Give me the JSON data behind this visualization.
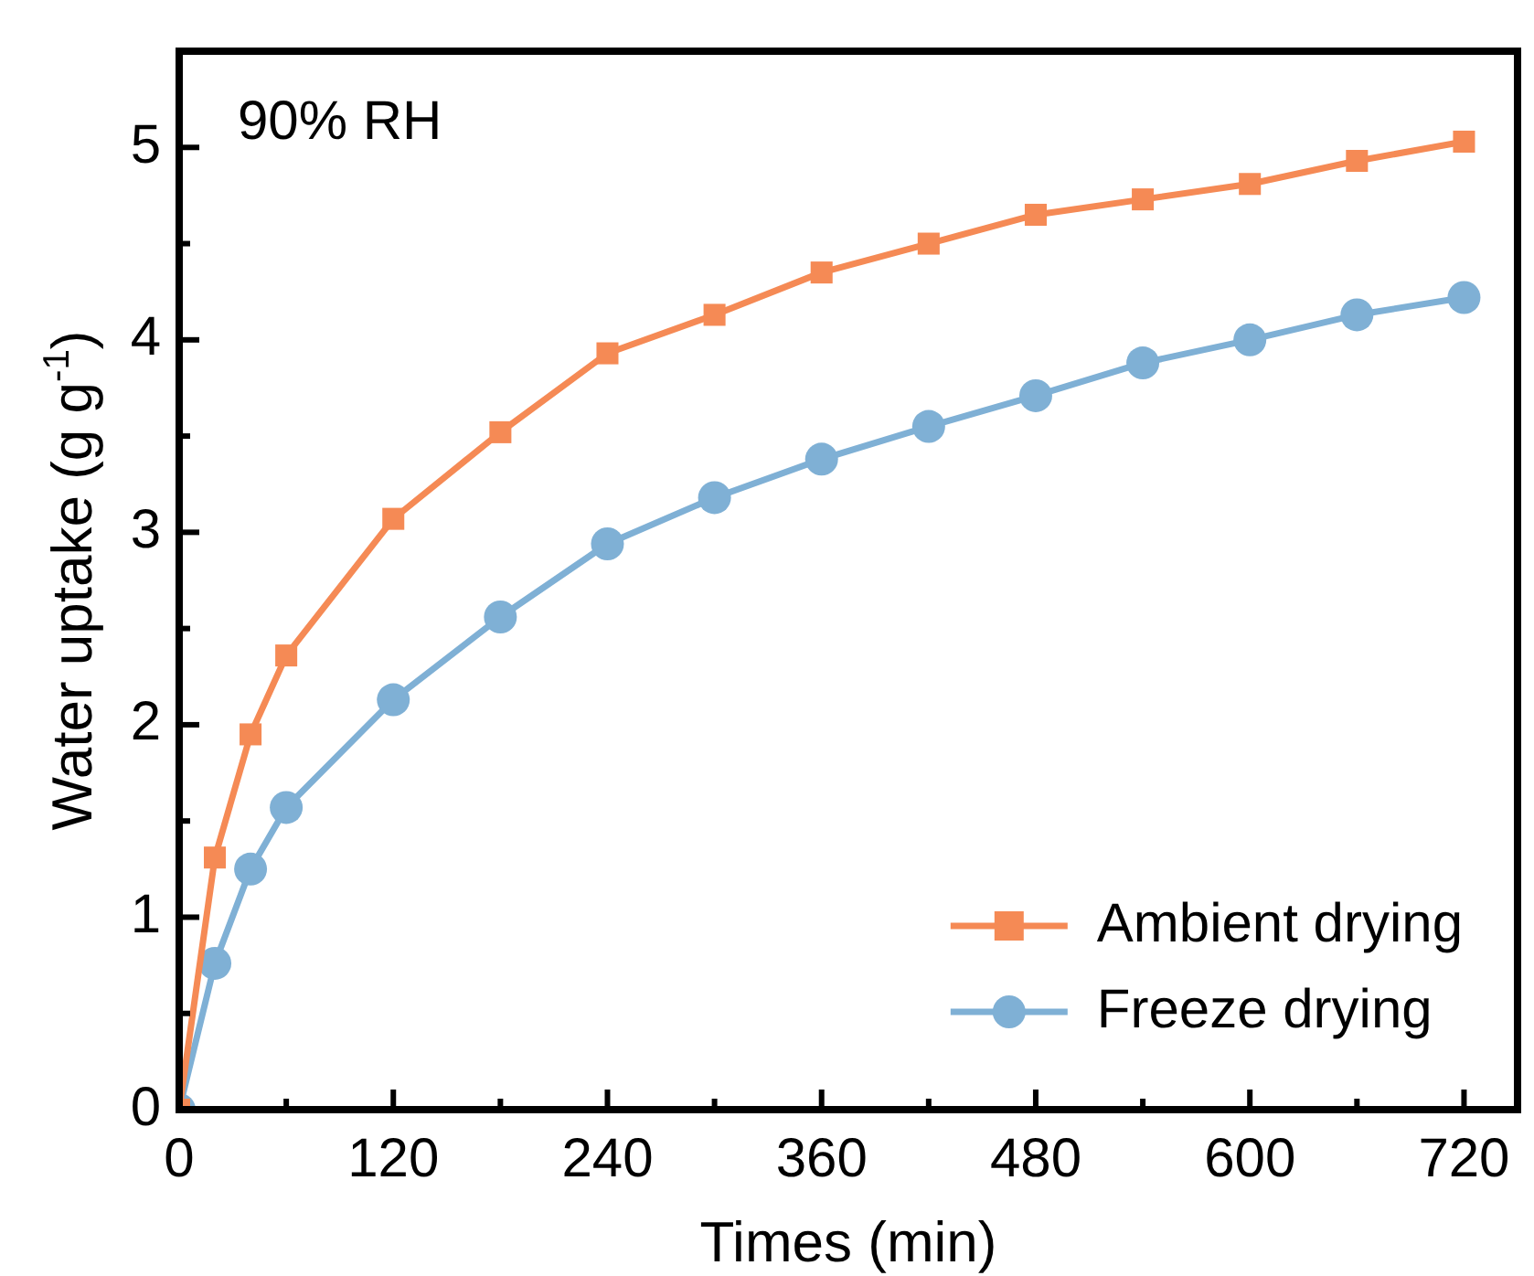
{
  "chart_data": {
    "type": "line",
    "xlabel": "Times (min)",
    "ylabel": "Water uptake (g g$^{-1}$)",
    "annotations": [
      "90% RH"
    ],
    "x": [
      0,
      20,
      40,
      60,
      120,
      180,
      240,
      300,
      360,
      420,
      480,
      540,
      600,
      660,
      720
    ],
    "xlim": [
      0,
      750
    ],
    "xticks": [
      0,
      {
        "value": 60,
        "label": null
      },
      120,
      {
        "value": 180,
        "label": null
      },
      240,
      {
        "value": 300,
        "label": null
      },
      360,
      {
        "value": 420,
        "label": null
      },
      480,
      {
        "value": 540,
        "label": null
      },
      600,
      {
        "value": 660,
        "label": null
      },
      720
    ],
    "ylim": [
      0,
      5.5
    ],
    "yticks": [
      0,
      {
        "value": 0.5,
        "label": null
      },
      1,
      {
        "value": 1.5,
        "label": null
      },
      2,
      {
        "value": 2.5,
        "label": null
      },
      3,
      {
        "value": 3.5,
        "label": null
      },
      4,
      {
        "value": 4.5,
        "label": null
      },
      5
    ],
    "legend": "bottom right",
    "series": [
      {
        "name": "Ambient drying",
        "color": "#f58a55",
        "marker": "square",
        "values": [
          0,
          1.31,
          1.95,
          2.36,
          3.07,
          3.52,
          3.93,
          4.13,
          4.35,
          4.5,
          4.65,
          4.73,
          4.81,
          4.93,
          5.03
        ]
      },
      {
        "name": "Freeze drying",
        "color": "#7fb0d5",
        "marker": "circle",
        "values": [
          0,
          0.76,
          1.25,
          1.57,
          2.13,
          2.56,
          2.94,
          3.18,
          3.38,
          3.55,
          3.71,
          3.88,
          4.0,
          4.13,
          4.22
        ]
      }
    ]
  }
}
